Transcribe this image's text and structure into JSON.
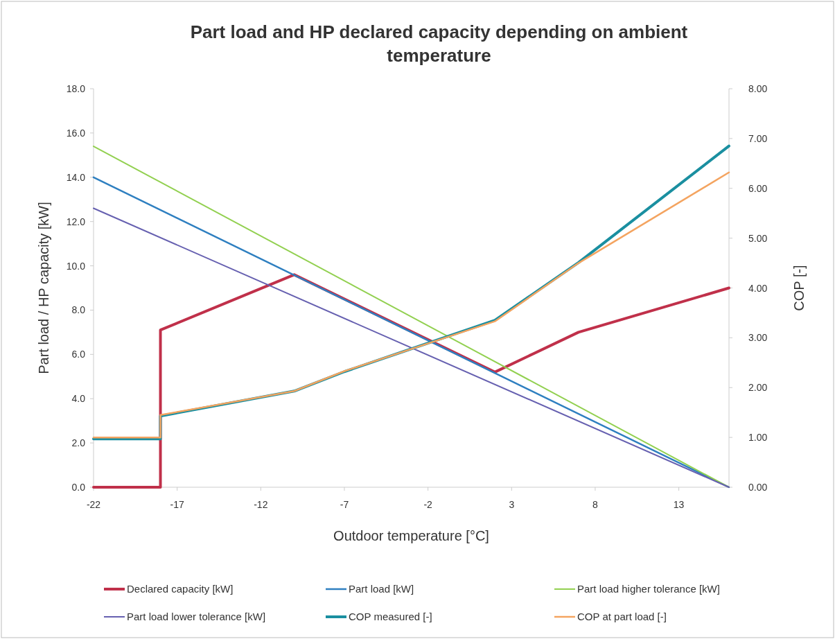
{
  "chart_data": {
    "type": "line",
    "title": "Part load and HP declared capacity depending on ambient temperature",
    "xlabel": "Outdoor temperature [°C]",
    "ylabel": "Part load / HP capacity [kW]",
    "y2label": "COP [-]",
    "xlim": [
      -22,
      16
    ],
    "xticks": [
      -22,
      -17,
      -12,
      -7,
      -2,
      3,
      8,
      13
    ],
    "ylim": [
      0,
      18
    ],
    "yticks": [
      {
        "value": 0,
        "label": "0.0"
      },
      {
        "value": 2,
        "label": "2.0"
      },
      {
        "value": 4,
        "label": "4.0"
      },
      {
        "value": 6,
        "label": "6.0"
      },
      {
        "value": 8,
        "label": "8.0"
      },
      {
        "value": 10,
        "label": "10.0"
      },
      {
        "value": 12,
        "label": "12.0"
      },
      {
        "value": 14,
        "label": "14.0"
      },
      {
        "value": 16,
        "label": "16.0"
      },
      {
        "value": 18,
        "label": "18.0"
      }
    ],
    "y2lim": [
      0,
      8
    ],
    "y2ticks": [
      {
        "value": 0,
        "label": "0.00"
      },
      {
        "value": 1,
        "label": "1.00"
      },
      {
        "value": 2,
        "label": "2.00"
      },
      {
        "value": 3,
        "label": "3.00"
      },
      {
        "value": 4,
        "label": "4.00"
      },
      {
        "value": 5,
        "label": "5.00"
      },
      {
        "value": 6,
        "label": "6.00"
      },
      {
        "value": 7,
        "label": "7.00"
      },
      {
        "value": 8,
        "label": "8.00"
      }
    ],
    "grid": false,
    "legend": "bottom",
    "marker": "none",
    "line_style": "solid",
    "series": [
      {
        "name": "Declared capacity [kW]",
        "color": "#c0304a",
        "x": [
          -22,
          -18,
          -18,
          -10,
          2,
          7,
          16
        ],
        "values": [
          0,
          0,
          7.1,
          9.6,
          5.2,
          7.0,
          9.0
        ]
      },
      {
        "name": "Part load [kW]",
        "color": "#2e7fc0",
        "x": [
          -22,
          16
        ],
        "values": [
          14.0,
          0
        ]
      },
      {
        "name": "Part load higher tolerance [kW]",
        "color": "#92d050",
        "x": [
          -22,
          16
        ],
        "values": [
          15.4,
          0
        ]
      },
      {
        "name": "Part load lower tolerance [kW]",
        "color": "#6660b0",
        "x": [
          -22,
          16
        ],
        "values": [
          12.6,
          0
        ]
      },
      {
        "name": "COP measured [-]",
        "color": "#1a8fa0",
        "axis": "y2",
        "x": [
          -22,
          -18,
          -18,
          -10,
          -7,
          2,
          7,
          16
        ],
        "values": [
          0.97,
          0.97,
          1.43,
          1.93,
          2.32,
          3.35,
          4.51,
          6.85
        ]
      },
      {
        "name": "COP at part load [-]",
        "color": "#f4a460",
        "axis": "y2",
        "x": [
          -22,
          -18,
          -18,
          -10,
          -7,
          2,
          7,
          16
        ],
        "values": [
          1.0,
          1.0,
          1.45,
          1.93,
          2.33,
          3.33,
          4.5,
          6.32
        ]
      }
    ]
  }
}
